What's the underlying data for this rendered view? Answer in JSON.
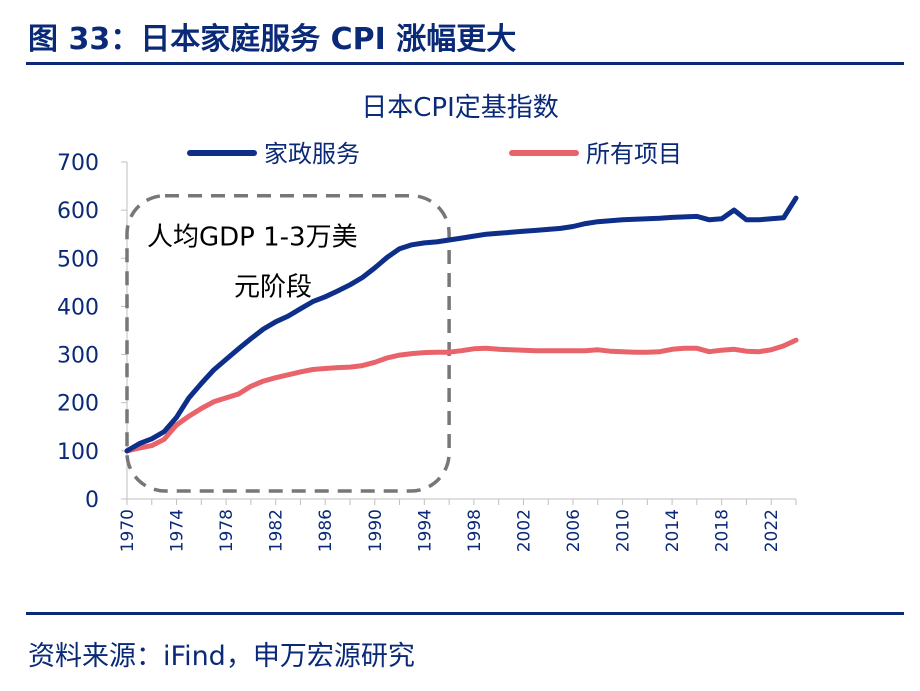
{
  "figure": {
    "title": "图 33：日本家庭服务 CPI 涨幅更大",
    "source": "资料来源：iFind，申万宏源研究"
  },
  "colors": {
    "series_1": "#0d2f8a",
    "series_2": "#e8646a",
    "text": "#0a2a78",
    "box": "#777777"
  },
  "chart_data": {
    "type": "line",
    "title": "日本CPI定基指数",
    "legend_position": "top",
    "ylim": [
      0,
      700
    ],
    "yticks": [
      0,
      100,
      200,
      300,
      400,
      500,
      600,
      700
    ],
    "xlim": [
      1970,
      2024
    ],
    "xticks": [
      "1970",
      "1974",
      "1978",
      "1982",
      "1986",
      "1990",
      "1994",
      "1998",
      "2002",
      "2006",
      "2010",
      "2014",
      "2018",
      "2022"
    ],
    "x": [
      1970,
      1971,
      1972,
      1973,
      1974,
      1975,
      1976,
      1977,
      1978,
      1979,
      1980,
      1981,
      1982,
      1983,
      1984,
      1985,
      1986,
      1987,
      1988,
      1989,
      1990,
      1991,
      1992,
      1993,
      1994,
      1995,
      1996,
      1997,
      1998,
      1999,
      2000,
      2001,
      2002,
      2003,
      2004,
      2005,
      2006,
      2007,
      2008,
      2009,
      2010,
      2011,
      2012,
      2013,
      2014,
      2015,
      2016,
      2017,
      2018,
      2019,
      2020,
      2021,
      2022,
      2023,
      2024
    ],
    "series": [
      {
        "name": "家政服务",
        "values": [
          100,
          115,
          125,
          140,
          170,
          210,
          240,
          268,
          290,
          312,
          333,
          353,
          368,
          380,
          395,
          410,
          420,
          432,
          445,
          460,
          480,
          502,
          520,
          528,
          532,
          534,
          538,
          542,
          546,
          550,
          552,
          554,
          556,
          558,
          560,
          562,
          566,
          572,
          576,
          578,
          580,
          581,
          582,
          583,
          585,
          586,
          587,
          580,
          582,
          600,
          580,
          580,
          582,
          584,
          625
        ]
      },
      {
        "name": "所有项目",
        "values": [
          100,
          106,
          111,
          124,
          154,
          172,
          188,
          202,
          210,
          218,
          234,
          245,
          252,
          258,
          264,
          269,
          271,
          273,
          274,
          277,
          284,
          293,
          299,
          302,
          304,
          305,
          305,
          308,
          312,
          313,
          311,
          310,
          309,
          308,
          308,
          308,
          308,
          308,
          310,
          307,
          306,
          305,
          305,
          306,
          311,
          313,
          313,
          306,
          309,
          311,
          307,
          306,
          310,
          318,
          330
        ]
      }
    ],
    "annotation": {
      "lines": [
        "人均GDP 1-3万美",
        "元阶段"
      ],
      "x_range": [
        1970,
        1996
      ],
      "y_range": [
        0,
        630
      ]
    }
  }
}
